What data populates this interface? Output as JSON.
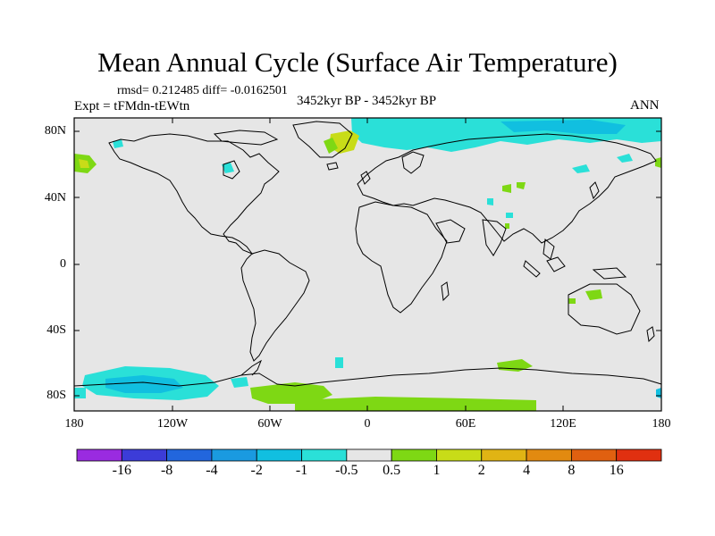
{
  "title": "Mean Annual Cycle (Surface Air Temperature)",
  "stats": "rmsd= 0.212485 diff= -0.0162501",
  "experiment": "Expt = tFMdn-tEWtn",
  "period": "3452kyr BP - 3452kyr BP",
  "season": "ANN",
  "lat_ticks": [
    "80N",
    "40N",
    "0",
    "40S",
    "80S"
  ],
  "lon_ticks": [
    "180",
    "120W",
    "60W",
    "0",
    "60E",
    "120E",
    "180"
  ],
  "colorbar": {
    "colors": [
      "#9a2be0",
      "#3c3cd8",
      "#2266dd",
      "#1a9ae0",
      "#11bfe0",
      "#2ae0d8",
      "#e6e6e6",
      "#7ed814",
      "#c8dc18",
      "#e0b414",
      "#e28a10",
      "#e06010",
      "#e03010"
    ],
    "labels": [
      "-16",
      "-8",
      "-4",
      "-2",
      "-1",
      "-0.5",
      "0.5",
      "1",
      "2",
      "4",
      "8",
      "16"
    ]
  },
  "colors": {
    "cool": "#2ae0d8",
    "cool_mid": "#11bfe0",
    "warm": "#7ed814",
    "warm_mid": "#c8dc18",
    "neutral": "#e6e6e6"
  }
}
